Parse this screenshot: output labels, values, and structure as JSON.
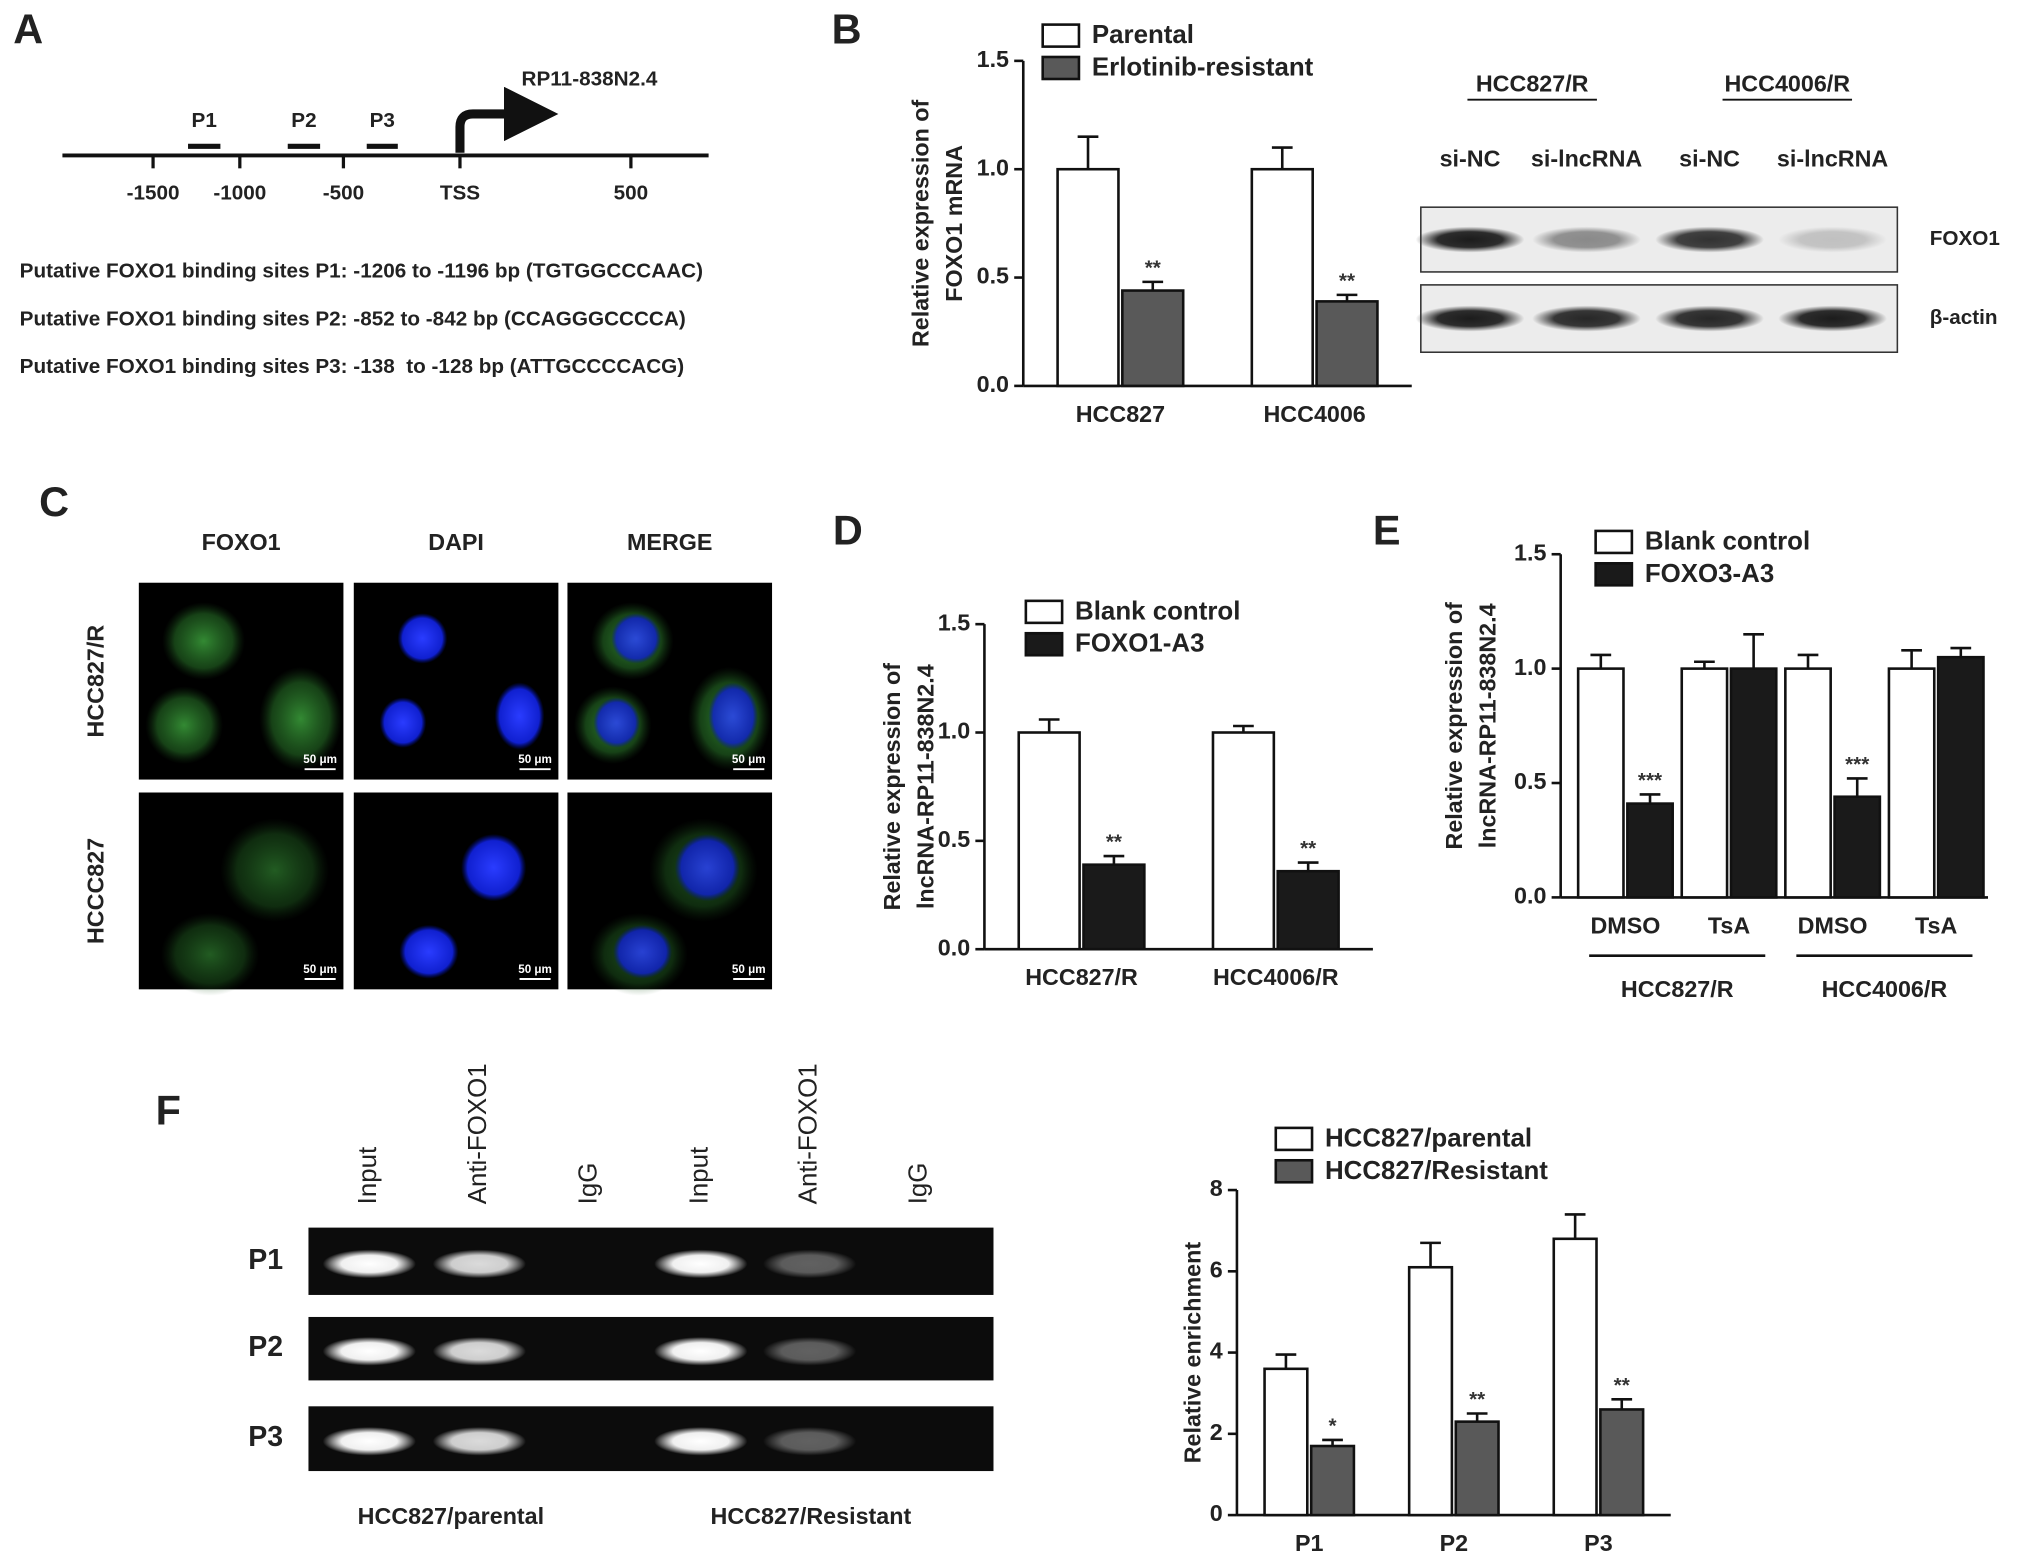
{
  "panel_a": {
    "panel": "A",
    "gene": "RP11-838N2.4",
    "sites": [
      "P1",
      "P2",
      "P3"
    ],
    "positions": [
      "-1500",
      "-1000",
      "-500",
      "TSS",
      "500"
    ],
    "descriptions": [
      "Putative FOXO1 binding sites P1: -1206 to -1196 bp (TGTGGCCCAAC)",
      "Putative FOXO1 binding sites P2: -852 to -842 bp (CCAGGGCCCCA)",
      "Putative FOXO1 binding sites P3: -138  to -128 bp (ATTGCCCCACG)"
    ]
  },
  "blot_b": {
    "groups": [
      "HCC827/R",
      "HCC4006/R"
    ],
    "lanes": [
      "si-NC",
      "si-lncRNA",
      "si-NC",
      "si-lncRNA"
    ],
    "rows": [
      "FOXO1",
      "β-actin"
    ]
  },
  "panel_c": {
    "panel": "C",
    "columns": [
      "FOXO1",
      "DAPI",
      "MERGE"
    ],
    "rows": [
      "HCC827/R",
      "HCCC827"
    ],
    "scale_bar": "50 μm"
  },
  "gel_f": {
    "lanes": [
      "Input",
      "Anti-FOXO1",
      "IgG",
      "Input",
      "Anti-FOXO1",
      "IgG"
    ],
    "rows": [
      "P1",
      "P2",
      "P3"
    ],
    "groups": [
      "HCC827/parental",
      "HCC827/Resistant"
    ]
  },
  "chart_data": [
    {
      "type": "bar",
      "panel": "B",
      "ylabel": [
        "Relative expression of",
        "FOXO1 mRNA"
      ],
      "categories": [
        "HCC827",
        "HCC4006"
      ],
      "series": [
        {
          "name": "Parental",
          "color": "#ffffff",
          "values": [
            1.0,
            1.0
          ],
          "errors": [
            0.15,
            0.1
          ]
        },
        {
          "name": "Erlotinib-resistant",
          "color": "#595959",
          "values": [
            0.44,
            0.39
          ],
          "errors": [
            0.04,
            0.03
          ],
          "markers": [
            "**",
            "**"
          ]
        }
      ],
      "ylim": [
        0,
        1.5
      ],
      "yticks": [
        {
          "value": 0,
          "label": "0.0"
        },
        {
          "value": 0.5,
          "label": "0.5"
        },
        {
          "value": 1,
          "label": "1.0"
        },
        {
          "value": 1.5,
          "label": "1.5"
        }
      ]
    },
    {
      "type": "bar",
      "panel": "D",
      "ylabel": [
        "Relative expression of",
        "lncRNA-RP11-838N2.4"
      ],
      "categories": [
        "HCC827/R",
        "HCC4006/R"
      ],
      "series": [
        {
          "name": "Blank control",
          "color": "#ffffff",
          "values": [
            1.0,
            1.0
          ],
          "errors": [
            0.06,
            0.03
          ]
        },
        {
          "name": "FOXO1-A3",
          "color": "#1a1a1a",
          "values": [
            0.39,
            0.36
          ],
          "errors": [
            0.04,
            0.04
          ],
          "markers": [
            "**",
            "**"
          ]
        }
      ],
      "ylim": [
        0,
        1.5
      ],
      "yticks": [
        {
          "value": 0,
          "label": "0.0"
        },
        {
          "value": 0.5,
          "label": "0.5"
        },
        {
          "value": 1,
          "label": "1.0"
        },
        {
          "value": 1.5,
          "label": "1.5"
        }
      ]
    },
    {
      "type": "bar",
      "panel": "E",
      "ylabel": [
        "Relative expression of",
        "lncRNA-RP11-838N2.4"
      ],
      "categories": [
        "DMSO",
        "TsA",
        "DMSO",
        "TsA"
      ],
      "group_labels": [
        "HCC827/R",
        "HCC4006/R"
      ],
      "series": [
        {
          "name": "Blank control",
          "color": "#ffffff",
          "values": [
            1.0,
            1.0,
            1.0,
            1.0
          ],
          "errors": [
            0.06,
            0.03,
            0.06,
            0.08
          ]
        },
        {
          "name": "FOXO3-A3",
          "color": "#1a1a1a",
          "values": [
            0.41,
            1.0,
            0.44,
            1.05
          ],
          "errors": [
            0.04,
            0.15,
            0.08,
            0.04
          ],
          "markers": [
            "***",
            null,
            "***",
            null
          ]
        }
      ],
      "ylim": [
        0,
        1.5
      ],
      "yticks": [
        {
          "value": 0,
          "label": "0.0"
        },
        {
          "value": 0.5,
          "label": "0.5"
        },
        {
          "value": 1,
          "label": "1.0"
        },
        {
          "value": 1.5,
          "label": "1.5"
        }
      ]
    },
    {
      "type": "bar",
      "panel": "F",
      "ylabel": [
        "Relative enrichment"
      ],
      "categories": [
        "P1",
        "P2",
        "P3"
      ],
      "series": [
        {
          "name": "HCC827/parental",
          "color": "#ffffff",
          "values": [
            3.6,
            6.1,
            6.8
          ],
          "errors": [
            0.35,
            0.6,
            0.6
          ]
        },
        {
          "name": "HCC827/Resistant",
          "color": "#595959",
          "values": [
            1.7,
            2.3,
            2.6
          ],
          "errors": [
            0.15,
            0.2,
            0.25
          ],
          "markers": [
            "*",
            "**",
            "**"
          ]
        }
      ],
      "ylim": [
        0,
        8
      ],
      "yticks": [
        0,
        2,
        4,
        6,
        8
      ]
    }
  ]
}
